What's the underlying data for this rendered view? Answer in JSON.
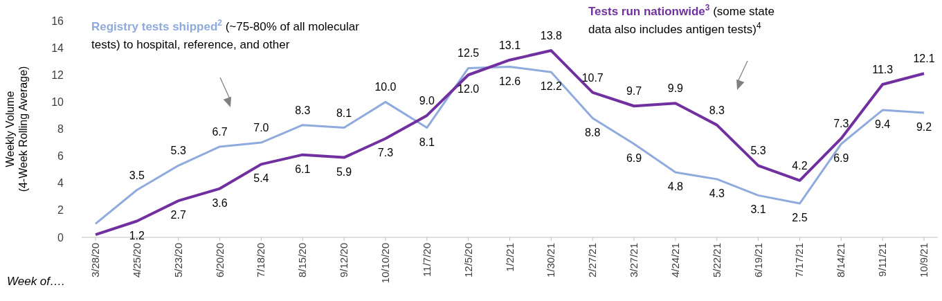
{
  "chart_data": {
    "type": "line",
    "categories": [
      "3/28/20",
      "4/25/20",
      "5/23/20",
      "6/20/20",
      "7/18/20",
      "8/15/20",
      "9/12/20",
      "10/10/20",
      "11/7/20",
      "12/5/20",
      "1/2/21",
      "1/30/21",
      "2/27/21",
      "3/27/21",
      "4/24/21",
      "5/22/21",
      "6/19/21",
      "7/17/21",
      "8/14/21",
      "9/11/21",
      "10/9/21"
    ],
    "xlabel": "Week of….",
    "ylabel": "Weekly Volume\n(4-Week Rolling Average)",
    "ylim": [
      0,
      16
    ],
    "yticks": [
      0,
      2,
      4,
      6,
      8,
      10,
      12,
      14,
      16
    ],
    "series": [
      {
        "name": "Registry tests shipped$^{2}$",
        "color": "#8faadc",
        "values": [
          1.0,
          3.5,
          5.3,
          6.7,
          7.0,
          8.3,
          8.1,
          10.0,
          8.1,
          12.5,
          12.6,
          12.2,
          8.8,
          6.9,
          4.8,
          4.3,
          3.1,
          2.5,
          6.9,
          9.4,
          9.2
        ],
        "value_labels": [
          null,
          "3.5",
          "5.3",
          "6.7",
          "7.0",
          "8.3",
          "8.1",
          "10.0",
          "8.1",
          "12.5",
          "12.6",
          "12.2",
          "8.8",
          "6.9",
          "4.8",
          "4.3",
          "3.1",
          "2.5",
          "6.9",
          "9.4",
          "9.2"
        ]
      },
      {
        "name": "Tests run nationwide$^{3}$",
        "color": "#7030a0",
        "values": [
          0.2,
          1.2,
          2.7,
          3.6,
          5.4,
          6.1,
          5.9,
          7.3,
          9.0,
          12.0,
          13.1,
          13.8,
          10.7,
          9.7,
          9.9,
          8.3,
          5.3,
          4.2,
          7.3,
          11.3,
          12.1
        ],
        "value_labels": [
          null,
          "1.2",
          "2.7",
          "3.6",
          "5.4",
          "6.1",
          "5.9",
          "7.3",
          "9.0",
          "12.0",
          "13.1",
          "13.8",
          "10.7",
          "9.7",
          "9.9",
          "8.3",
          "5.3",
          "4.2",
          "7.3",
          "11.3",
          "12.1"
        ]
      }
    ],
    "annotations": [
      "(~75-80% of all molecular tests) to hospital, reference, and other",
      "(some state data also includes antigen tests)$^{4}$"
    ],
    "grid": false,
    "marker": "none",
    "line_style": "solid"
  }
}
